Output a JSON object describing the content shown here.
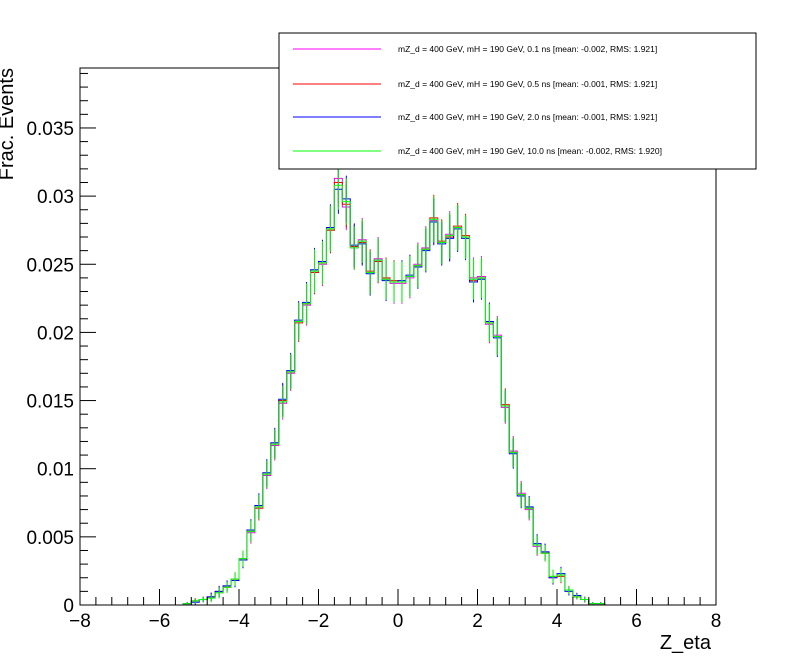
{
  "chart_data": {
    "type": "line",
    "subtype": "step-histogram-with-error-bars",
    "xlabel": "Z_eta",
    "ylabel": "Frac. Events",
    "xlim": [
      -8,
      8
    ],
    "ylim": [
      0,
      0.0394
    ],
    "xticks": [
      -8,
      -6,
      -4,
      -2,
      0,
      2,
      4,
      6,
      8
    ],
    "xtick_labels": [
      "−8",
      "−6",
      "−4",
      "−2",
      "0",
      "2",
      "4",
      "6",
      "8"
    ],
    "yticks": [
      0,
      0.005,
      0.01,
      0.015,
      0.02,
      0.025,
      0.03,
      0.035
    ],
    "ytick_labels": [
      "0",
      "0.005",
      "0.01",
      "0.015",
      "0.02",
      "0.025",
      "0.03",
      "0.035"
    ],
    "grid": false,
    "legend_position": "top-right",
    "bin_edges": [
      -5.4,
      5.4
    ],
    "x": [
      -5.3,
      -5.1,
      -4.9,
      -4.7,
      -4.5,
      -4.3,
      -4.1,
      -3.9,
      -3.7,
      -3.5,
      -3.3,
      -3.1,
      -2.9,
      -2.7,
      -2.5,
      -2.3,
      -2.1,
      -1.9,
      -1.7,
      -1.5,
      -1.3,
      -1.1,
      -0.9,
      -0.7,
      -0.5,
      -0.3,
      -0.1,
      0.1,
      0.3,
      0.5,
      0.7,
      0.9,
      1.1,
      1.3,
      1.5,
      1.7,
      1.9,
      2.1,
      2.3,
      2.5,
      2.7,
      2.9,
      3.1,
      3.3,
      3.5,
      3.7,
      3.9,
      4.1,
      4.3,
      4.5,
      4.7,
      4.9,
      5.1,
      5.3
    ],
    "series": [
      {
        "name": "mZ_d = 400 GeV, mH = 190 GeV, 0.1 ns [mean: -0.002, RMS: 1.921]",
        "color": "#ff00ff",
        "values": [
          0.0001,
          0.0003,
          0.0004,
          0.0006,
          0.0009,
          0.0014,
          0.0019,
          0.0033,
          0.0053,
          0.0072,
          0.0095,
          0.0117,
          0.0148,
          0.017,
          0.0208,
          0.022,
          0.0245,
          0.025,
          0.0276,
          0.0313,
          0.0292,
          0.0262,
          0.0268,
          0.0244,
          0.0254,
          0.0239,
          0.0236,
          0.0236,
          0.024,
          0.025,
          0.0262,
          0.0282,
          0.0266,
          0.0272,
          0.0277,
          0.027,
          0.024,
          0.0241,
          0.0206,
          0.0198,
          0.0145,
          0.0113,
          0.0082,
          0.007,
          0.0043,
          0.0039,
          0.002,
          0.0022,
          0.0011,
          0.0006,
          0.0004,
          0.0001,
          0.0001,
          0.0
        ],
        "error": [
          0.0001,
          0.0002,
          0.0002,
          0.0003,
          0.0004,
          0.0004,
          0.0005,
          0.0006,
          0.0008,
          0.0009,
          0.001,
          0.0011,
          0.0012,
          0.0013,
          0.0014,
          0.0015,
          0.0016,
          0.0016,
          0.0017,
          0.0018,
          0.0017,
          0.0016,
          0.0016,
          0.0016,
          0.0016,
          0.0015,
          0.0015,
          0.0015,
          0.0015,
          0.0016,
          0.0016,
          0.0017,
          0.0016,
          0.0017,
          0.0017,
          0.0016,
          0.0015,
          0.0015,
          0.0014,
          0.0014,
          0.0012,
          0.0011,
          0.0009,
          0.0008,
          0.0007,
          0.0006,
          0.0005,
          0.0005,
          0.0003,
          0.0002,
          0.0002,
          0.0001,
          0.0001,
          0.0
        ]
      },
      {
        "name": "mZ_d = 400 GeV, mH = 190 GeV, 0.5 ns [mean: -0.001, RMS: 1.921]",
        "color": "#ff0000",
        "values": [
          0.0001,
          0.0003,
          0.0004,
          0.0006,
          0.001,
          0.0013,
          0.0019,
          0.0034,
          0.0054,
          0.0071,
          0.0096,
          0.0118,
          0.015,
          0.0171,
          0.0207,
          0.0221,
          0.0244,
          0.0251,
          0.0275,
          0.031,
          0.0294,
          0.0263,
          0.0266,
          0.0245,
          0.0252,
          0.024,
          0.0238,
          0.0237,
          0.0241,
          0.0249,
          0.0261,
          0.0284,
          0.0267,
          0.027,
          0.0278,
          0.0271,
          0.0238,
          0.024,
          0.0207,
          0.0197,
          0.0147,
          0.0112,
          0.0081,
          0.0071,
          0.0044,
          0.0038,
          0.0021,
          0.0021,
          0.0011,
          0.0006,
          0.0004,
          0.0001,
          0.0001,
          0.0
        ],
        "error": [
          0.0001,
          0.0002,
          0.0002,
          0.0003,
          0.0004,
          0.0004,
          0.0005,
          0.0006,
          0.0008,
          0.0009,
          0.001,
          0.0011,
          0.0012,
          0.0013,
          0.0014,
          0.0015,
          0.0016,
          0.0016,
          0.0017,
          0.0018,
          0.0017,
          0.0016,
          0.0016,
          0.0016,
          0.0016,
          0.0015,
          0.0015,
          0.0015,
          0.0015,
          0.0016,
          0.0016,
          0.0017,
          0.0016,
          0.0017,
          0.0017,
          0.0016,
          0.0015,
          0.0015,
          0.0014,
          0.0014,
          0.0012,
          0.0011,
          0.0009,
          0.0008,
          0.0007,
          0.0006,
          0.0005,
          0.0005,
          0.0003,
          0.0002,
          0.0002,
          0.0001,
          0.0001,
          0.0
        ]
      },
      {
        "name": "mZ_d = 400 GeV, mH = 190 GeV, 2.0 ns [mean: -0.001, RMS: 1.921]",
        "color": "#0000ff",
        "values": [
          0.0001,
          0.0002,
          0.0004,
          0.0006,
          0.001,
          0.0014,
          0.0018,
          0.0033,
          0.0055,
          0.0073,
          0.0097,
          0.0119,
          0.0151,
          0.0172,
          0.0209,
          0.0222,
          0.0246,
          0.0252,
          0.0277,
          0.0305,
          0.0298,
          0.0264,
          0.0265,
          0.0243,
          0.0253,
          0.0238,
          0.0237,
          0.0238,
          0.0242,
          0.0248,
          0.026,
          0.0281,
          0.0265,
          0.0269,
          0.0276,
          0.0269,
          0.0237,
          0.0239,
          0.0208,
          0.0196,
          0.0146,
          0.0111,
          0.008,
          0.0072,
          0.0045,
          0.0039,
          0.002,
          0.0023,
          0.001,
          0.0007,
          0.0004,
          0.0001,
          0.0001,
          0.0
        ],
        "error": [
          0.0001,
          0.0002,
          0.0002,
          0.0003,
          0.0004,
          0.0004,
          0.0005,
          0.0006,
          0.0008,
          0.0009,
          0.001,
          0.0011,
          0.0012,
          0.0013,
          0.0014,
          0.0015,
          0.0016,
          0.0016,
          0.0017,
          0.0018,
          0.0017,
          0.0016,
          0.0016,
          0.0016,
          0.0016,
          0.0015,
          0.0015,
          0.0015,
          0.0015,
          0.0016,
          0.0016,
          0.0017,
          0.0016,
          0.0017,
          0.0017,
          0.0016,
          0.0015,
          0.0015,
          0.0014,
          0.0014,
          0.0012,
          0.0011,
          0.0009,
          0.0008,
          0.0007,
          0.0006,
          0.0005,
          0.0005,
          0.0003,
          0.0002,
          0.0002,
          0.0001,
          0.0001,
          0.0
        ]
      },
      {
        "name": "mZ_d = 400 GeV, mH = 190 GeV, 10.0 ns [mean: -0.002, RMS: 1.920]",
        "color": "#00ff00",
        "values": [
          0.0001,
          0.0003,
          0.0004,
          0.0005,
          0.0009,
          0.0013,
          0.0019,
          0.0034,
          0.0054,
          0.0072,
          0.0096,
          0.0118,
          0.0149,
          0.0171,
          0.0208,
          0.0221,
          0.0245,
          0.0251,
          0.0276,
          0.0308,
          0.0296,
          0.0262,
          0.0267,
          0.0244,
          0.0253,
          0.0239,
          0.0237,
          0.0237,
          0.0241,
          0.0249,
          0.0261,
          0.0283,
          0.0266,
          0.0271,
          0.0277,
          0.027,
          0.0239,
          0.024,
          0.0207,
          0.0197,
          0.0146,
          0.0112,
          0.0081,
          0.0071,
          0.0044,
          0.0038,
          0.0021,
          0.0022,
          0.0011,
          0.0006,
          0.0004,
          0.0001,
          0.0001,
          0.0
        ],
        "error": [
          0.0001,
          0.0002,
          0.0002,
          0.0003,
          0.0004,
          0.0004,
          0.0005,
          0.0006,
          0.0008,
          0.0009,
          0.001,
          0.0011,
          0.0012,
          0.0013,
          0.0014,
          0.0015,
          0.0016,
          0.0016,
          0.0017,
          0.0018,
          0.0017,
          0.0016,
          0.0016,
          0.0016,
          0.0016,
          0.0015,
          0.0015,
          0.0015,
          0.0015,
          0.0016,
          0.0016,
          0.0017,
          0.0016,
          0.0017,
          0.0017,
          0.0016,
          0.0015,
          0.0015,
          0.0014,
          0.0014,
          0.0012,
          0.0011,
          0.0009,
          0.0008,
          0.0007,
          0.0006,
          0.0005,
          0.0005,
          0.0003,
          0.0002,
          0.0002,
          0.0001,
          0.0001,
          0.0
        ]
      }
    ]
  }
}
